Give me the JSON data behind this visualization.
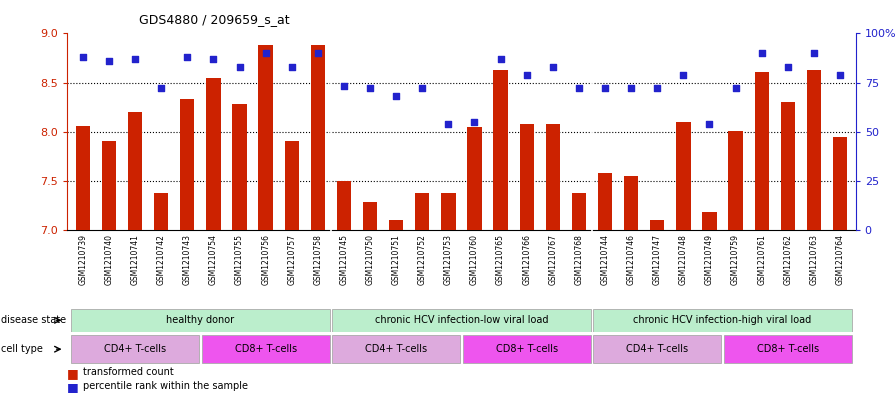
{
  "title": "GDS4880 / 209659_s_at",
  "samples": [
    "GSM1210739",
    "GSM1210740",
    "GSM1210741",
    "GSM1210742",
    "GSM1210743",
    "GSM1210754",
    "GSM1210755",
    "GSM1210756",
    "GSM1210757",
    "GSM1210758",
    "GSM1210745",
    "GSM1210750",
    "GSM1210751",
    "GSM1210752",
    "GSM1210753",
    "GSM1210760",
    "GSM1210765",
    "GSM1210766",
    "GSM1210767",
    "GSM1210768",
    "GSM1210744",
    "GSM1210746",
    "GSM1210747",
    "GSM1210748",
    "GSM1210749",
    "GSM1210759",
    "GSM1210761",
    "GSM1210762",
    "GSM1210763",
    "GSM1210764"
  ],
  "transformed_count": [
    8.06,
    7.9,
    8.2,
    7.38,
    8.33,
    8.55,
    8.28,
    8.88,
    7.9,
    8.88,
    7.5,
    7.28,
    7.1,
    7.38,
    7.38,
    8.05,
    8.63,
    8.08,
    8.08,
    7.38,
    7.58,
    7.55,
    7.1,
    8.1,
    7.18,
    8.01,
    8.61,
    8.3,
    8.63,
    7.95
  ],
  "percentile_rank": [
    88,
    86,
    87,
    72,
    88,
    87,
    83,
    90,
    83,
    90,
    73,
    72,
    68,
    72,
    54,
    55,
    87,
    79,
    83,
    72,
    72,
    72,
    72,
    79,
    54,
    72,
    90,
    83,
    90,
    79
  ],
  "ylim_left": [
    7.0,
    9.0
  ],
  "ylim_right": [
    0,
    100
  ],
  "yticks_left": [
    7.0,
    7.5,
    8.0,
    8.5,
    9.0
  ],
  "yticks_right": [
    0,
    25,
    50,
    75,
    100
  ],
  "bar_color": "#cc2200",
  "dot_color": "#2222cc",
  "disease_groups": [
    {
      "label": "healthy donor",
      "start": 0,
      "end": 9,
      "color": "#bbeecc"
    },
    {
      "label": "chronic HCV infection-low viral load",
      "start": 10,
      "end": 19,
      "color": "#bbeecc"
    },
    {
      "label": "chronic HCV infection-high viral load",
      "start": 20,
      "end": 29,
      "color": "#bbeecc"
    }
  ],
  "cell_type_groups": [
    {
      "label": "CD4+ T-cells",
      "start": 0,
      "end": 4,
      "color": "#ddaadd"
    },
    {
      "label": "CD8+ T-cells",
      "start": 5,
      "end": 9,
      "color": "#ee55ee"
    },
    {
      "label": "CD4+ T-cells",
      "start": 10,
      "end": 14,
      "color": "#ddaadd"
    },
    {
      "label": "CD8+ T-cells",
      "start": 15,
      "end": 19,
      "color": "#ee55ee"
    },
    {
      "label": "CD4+ T-cells",
      "start": 20,
      "end": 24,
      "color": "#ddaadd"
    },
    {
      "label": "CD8+ T-cells",
      "start": 25,
      "end": 29,
      "color": "#ee55ee"
    }
  ]
}
